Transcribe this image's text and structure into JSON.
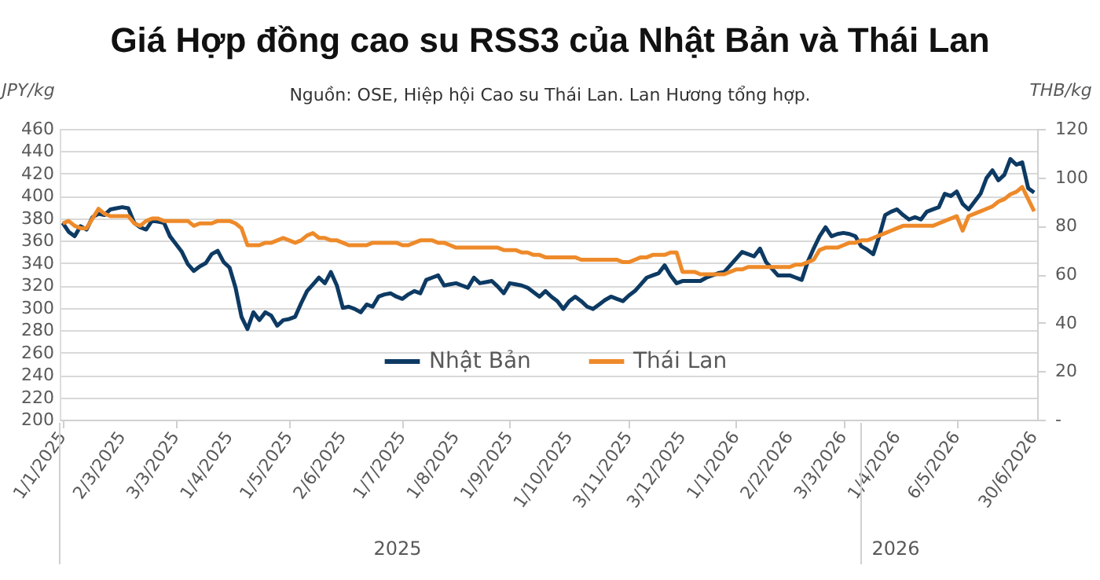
{
  "chart_data": {
    "type": "line",
    "title": "Giá Hợp đồng cao su RSS3 của Nhật Bản và Thái Lan",
    "subtitle": "Nguồn: OSE, Hiệp hội Cao su Thái Lan. Lan Hương tổng hợp.",
    "ylabel": "JPY/kg",
    "y2label": "THB/kg",
    "categories": [
      "1/1/2025",
      null,
      null,
      null,
      null,
      null,
      null,
      null,
      null,
      null,
      "2/3/2025",
      null,
      null,
      null,
      null,
      null,
      null,
      null,
      null,
      "3/3/2025",
      null,
      null,
      null,
      null,
      null,
      null,
      null,
      null,
      "1/4/2025",
      null,
      null,
      null,
      null,
      null,
      null,
      null,
      null,
      null,
      "1/5/2025",
      null,
      null,
      null,
      null,
      null,
      null,
      null,
      null,
      "2/6/2025",
      null,
      null,
      null,
      null,
      null,
      null,
      null,
      null,
      null,
      "1/7/2025",
      null,
      null,
      null,
      null,
      null,
      null,
      null,
      null,
      "1/8/2025",
      null,
      null,
      null,
      null,
      null,
      null,
      null,
      null,
      "1/9/2025",
      null,
      null,
      null,
      null,
      null,
      null,
      null,
      null,
      null,
      "1/10/2025",
      null,
      null,
      null,
      null,
      null,
      null,
      null,
      null,
      null,
      "3/11/2025",
      null,
      null,
      null,
      null,
      null,
      null,
      null,
      null,
      "3/12/2025",
      null,
      null,
      null,
      null,
      null,
      null,
      null,
      null,
      "1/1/2026",
      null,
      null,
      null,
      null,
      null,
      null,
      null,
      null,
      "2/2/2026",
      null,
      null,
      null,
      null,
      null,
      null,
      null,
      null,
      "3/3/2026",
      null,
      null,
      null,
      null,
      null,
      null,
      null,
      null,
      "1/4/2026",
      null,
      null,
      null,
      null,
      null,
      null,
      null,
      null,
      null,
      "6/5/2026",
      null,
      null,
      null,
      null,
      null,
      null,
      null,
      null,
      null,
      null,
      null,
      null,
      "30/6/2026"
    ],
    "ylim": [
      200,
      460
    ],
    "yticks": [
      200,
      220,
      240,
      260,
      280,
      300,
      320,
      340,
      360,
      380,
      400,
      420,
      440,
      460
    ],
    "y2lim": [
      0,
      120
    ],
    "y2ticks": [
      {
        "value": 0,
        "label": "-"
      },
      20,
      40,
      60,
      80,
      100,
      120
    ],
    "grid": "y",
    "legend": "bottom",
    "line_style": "solid",
    "marker": "none",
    "annotations": [
      "2025",
      "2026"
    ],
    "series": [
      {
        "name": "Nhật Bản",
        "color": "#0d3a63",
        "values": [
          376,
          368,
          364,
          373,
          370,
          381,
          384,
          383,
          388,
          389,
          390,
          389,
          376,
          372,
          370,
          378,
          377,
          376,
          364,
          357,
          350,
          339,
          333,
          337,
          340,
          348,
          351,
          341,
          336,
          318,
          292,
          281,
          296,
          289,
          296,
          293,
          284,
          289,
          290,
          292,
          304,
          315,
          321,
          327,
          322,
          332,
          320,
          300,
          301,
          299,
          296,
          303,
          301,
          310,
          312,
          313,
          310,
          308,
          312,
          315,
          313,
          325,
          327,
          329,
          320,
          321,
          322,
          320,
          318,
          327,
          322,
          323,
          324,
          319,
          313,
          322,
          321,
          320,
          318,
          314,
          310,
          315,
          310,
          306,
          299,
          306,
          310,
          306,
          301,
          299,
          303,
          307,
          310,
          308,
          306,
          311,
          315,
          321,
          327,
          329,
          331,
          338,
          329,
          322,
          324,
          324,
          324,
          324,
          327,
          329,
          331,
          332,
          338,
          344,
          350,
          348,
          346,
          353,
          341,
          335,
          329,
          329,
          329,
          327,
          325,
          341,
          353,
          364,
          372,
          364,
          366,
          367,
          366,
          364,
          355,
          352,
          348,
          364,
          383,
          386,
          388,
          383,
          379,
          381,
          379,
          386,
          388,
          390,
          402,
          400,
          404,
          393,
          388,
          395,
          402,
          416,
          423,
          414,
          419,
          433,
          428,
          430,
          407,
          403
        ]
      },
      {
        "name": "Thái Lan",
        "color": "#ee8a2a",
        "axis": "y2",
        "values": [
          81,
          82,
          80,
          79,
          79,
          83,
          87,
          85,
          84,
          84,
          84,
          84,
          81,
          80,
          82,
          83,
          83,
          82,
          82,
          82,
          82,
          82,
          80,
          81,
          81,
          81,
          82,
          82,
          82,
          81,
          79,
          72,
          72,
          72,
          73,
          73,
          74,
          75,
          74,
          73,
          74,
          76,
          77,
          75,
          75,
          74,
          74,
          73,
          72,
          72,
          72,
          72,
          73,
          73,
          73,
          73,
          73,
          72,
          72,
          73,
          74,
          74,
          74,
          73,
          73,
          72,
          71,
          71,
          71,
          71,
          71,
          71,
          71,
          71,
          70,
          70,
          70,
          69,
          69,
          68,
          68,
          67,
          67,
          67,
          67,
          67,
          67,
          66,
          66,
          66,
          66,
          66,
          66,
          66,
          65,
          65,
          66,
          67,
          67,
          68,
          68,
          68,
          69,
          69,
          61,
          61,
          61,
          60,
          60,
          60,
          60,
          60,
          61,
          62,
          62,
          63,
          63,
          63,
          63,
          63,
          63,
          63,
          63,
          64,
          64,
          65,
          66,
          70,
          71,
          71,
          71,
          72,
          73,
          73,
          74,
          74,
          75,
          76,
          77,
          78,
          79,
          80,
          80,
          80,
          80,
          80,
          80,
          81,
          82,
          83,
          84,
          78,
          84,
          85,
          86,
          87,
          88,
          90,
          91,
          93,
          94,
          96,
          91,
          86
        ]
      }
    ]
  }
}
